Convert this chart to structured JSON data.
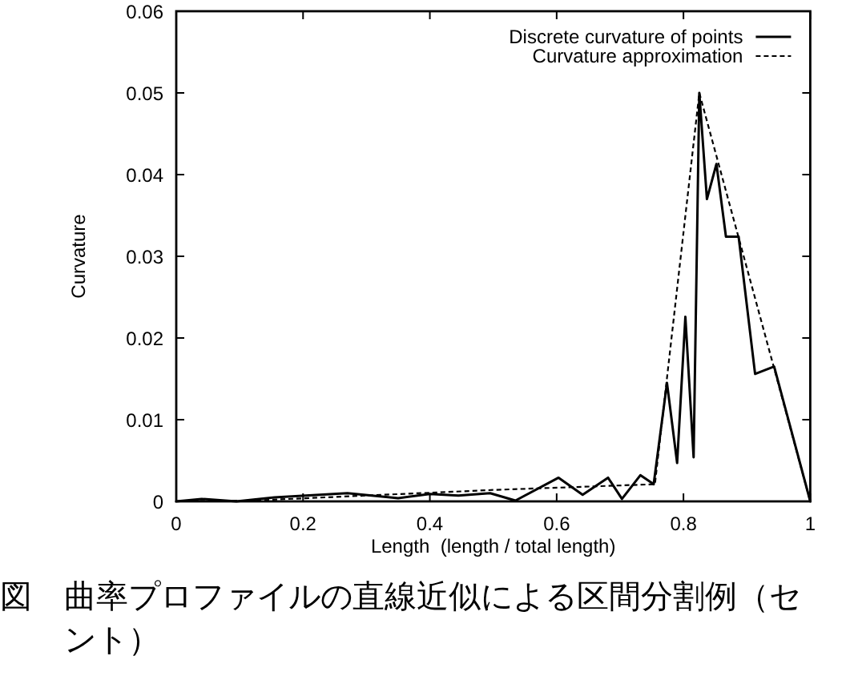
{
  "chart_data": {
    "type": "line",
    "xlabel": "Length  (length / total length)",
    "ylabel": "Curvature",
    "series": [
      {
        "name": "Discrete curvature of points",
        "color": "#000000",
        "line_style": "solid",
        "x": [
          0,
          0.04,
          0.095,
          0.155,
          0.27,
          0.35,
          0.4,
          0.445,
          0.495,
          0.535,
          0.603,
          0.641,
          0.681,
          0.703,
          0.732,
          0.753,
          0.774,
          0.79,
          0.803,
          0.816,
          0.825,
          0.837,
          0.852,
          0.867,
          0.887,
          0.913,
          0.943,
          1
        ],
        "values": [
          0,
          0.0003,
          0,
          0.0005,
          0.001,
          0.0004,
          0.0009,
          0.0007,
          0.001,
          0.0001,
          0.0029,
          0.0008,
          0.0029,
          0.0003,
          0.0032,
          0.0021,
          0.0145,
          0.0047,
          0.0226,
          0.0054,
          0.05,
          0.037,
          0.0413,
          0.0324,
          0.0324,
          0.0156,
          0.0165,
          0
        ]
      },
      {
        "name": "Curvature approximation",
        "color": "#000000",
        "line_style": "dashed",
        "x": [
          0,
          0.12,
          0.5,
          0.755,
          0.825,
          1
        ],
        "values": [
          0,
          0.0001,
          0.0014,
          0.0021,
          0.05,
          0
        ]
      }
    ],
    "xlim": [
      0,
      1
    ],
    "ylim": [
      0,
      0.06
    ],
    "xticks": [
      0,
      0.2,
      0.4,
      0.6,
      0.8,
      1
    ],
    "yticks": [
      0,
      0.01,
      0.02,
      0.03,
      0.04,
      0.05,
      0.06
    ],
    "legend": "top right",
    "annotations": [
      "図　曲率プロファイルの直線近似による区間分割例（セント）"
    ]
  }
}
